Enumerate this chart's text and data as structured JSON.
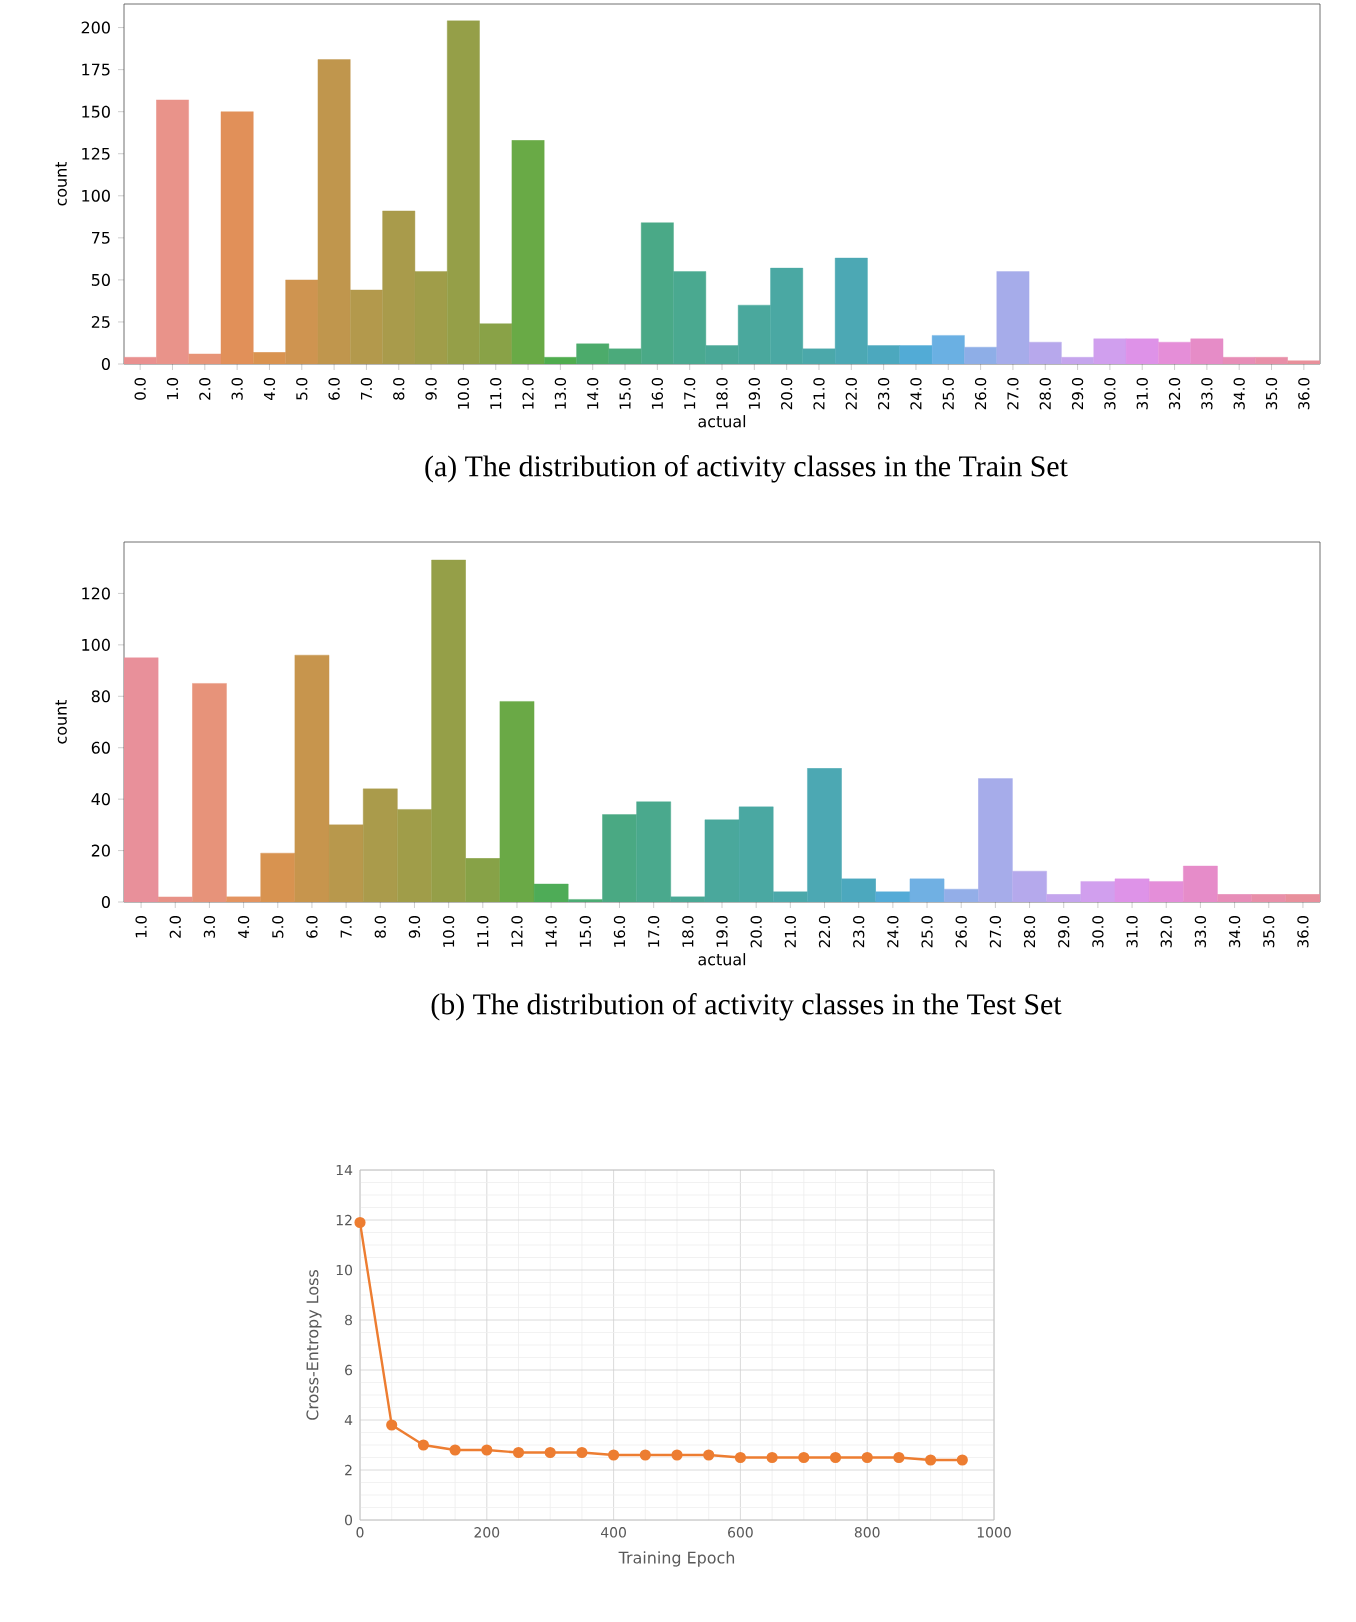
{
  "chart_data": [
    {
      "type": "bar",
      "title": "(a) The distribution of activity classes in the Train Set",
      "xlabel": "actual",
      "ylabel": "count",
      "categories": [
        "0.0",
        "1.0",
        "2.0",
        "3.0",
        "4.0",
        "5.0",
        "6.0",
        "7.0",
        "8.0",
        "9.0",
        "10.0",
        "11.0",
        "12.0",
        "13.0",
        "14.0",
        "15.0",
        "16.0",
        "17.0",
        "18.0",
        "19.0",
        "20.0",
        "21.0",
        "22.0",
        "23.0",
        "24.0",
        "25.0",
        "26.0",
        "27.0",
        "28.0",
        "29.0",
        "30.0",
        "31.0",
        "32.0",
        "33.0",
        "34.0",
        "35.0",
        "36.0"
      ],
      "values": [
        4,
        157,
        6,
        150,
        7,
        50,
        181,
        44,
        91,
        55,
        204,
        24,
        133,
        4,
        12,
        9,
        84,
        55,
        11,
        35,
        57,
        9,
        63,
        11,
        11,
        17,
        10,
        55,
        13,
        4,
        15,
        15,
        13,
        15,
        4,
        4,
        2
      ],
      "colors": [
        "#e9908f",
        "#e9938a",
        "#e79478",
        "#e19059",
        "#d99350",
        "#cf9450",
        "#c0964d",
        "#b3994c",
        "#a99b4b",
        "#a09d49",
        "#959f48",
        "#89a247",
        "#69aa46",
        "#4fac4e",
        "#4cab6b",
        "#4baa7b",
        "#4aa987",
        "#4aa990",
        "#4aa897",
        "#4aa89d",
        "#4aa8a3",
        "#4ba8aa",
        "#4ca8b4",
        "#4ca8be",
        "#52abd6",
        "#6ab0e3",
        "#8eaee7",
        "#a6acea",
        "#b7a8ec",
        "#c5a5ed",
        "#d09fee",
        "#de92e8",
        "#e58ed8",
        "#e68cc7",
        "#e78db7",
        "#e88fa8",
        "#e8909b"
      ],
      "ylim": [
        0,
        214
      ],
      "yticks": [
        0,
        25,
        50,
        75,
        100,
        125,
        150,
        175,
        200
      ]
    },
    {
      "type": "bar",
      "title": "(b) The distribution of activity classes in the Test Set",
      "xlabel": "actual",
      "ylabel": "count",
      "categories": [
        "1.0",
        "2.0",
        "3.0",
        "4.0",
        "5.0",
        "6.0",
        "7.0",
        "8.0",
        "9.0",
        "10.0",
        "11.0",
        "12.0",
        "14.0",
        "15.0",
        "16.0",
        "17.0",
        "18.0",
        "19.0",
        "20.0",
        "21.0",
        "22.0",
        "23.0",
        "24.0",
        "25.0",
        "26.0",
        "27.0",
        "28.0",
        "29.0",
        "30.0",
        "31.0",
        "32.0",
        "33.0",
        "34.0",
        "35.0",
        "36.0"
      ],
      "values": [
        95,
        2,
        85,
        2,
        19,
        96,
        30,
        44,
        36,
        133,
        17,
        78,
        7,
        1,
        34,
        39,
        2,
        32,
        37,
        4,
        52,
        9,
        4,
        9,
        5,
        48,
        12,
        3,
        8,
        9,
        8,
        14,
        3,
        3,
        3
      ],
      "colors": [
        "#e8909a",
        "#e89287",
        "#e7937a",
        "#e39461",
        "#d89350",
        "#c7954d",
        "#b8984c",
        "#aa9b4b",
        "#a09d49",
        "#959f48",
        "#87a247",
        "#6aa946",
        "#4eac57",
        "#4bab73",
        "#4aa983",
        "#4aa98d",
        "#4aa895",
        "#4aa89c",
        "#4aa8a2",
        "#4ba8aa",
        "#4ca8b3",
        "#4ca8be",
        "#54abd7",
        "#70b0e3",
        "#93aee8",
        "#a6acea",
        "#b5a9ec",
        "#c4a5ed",
        "#d19fee",
        "#de93e8",
        "#e48ed9",
        "#e68cc9",
        "#e78db8",
        "#e88fa9",
        "#e8909c"
      ],
      "ylim": [
        0,
        140
      ],
      "yticks": [
        0,
        20,
        40,
        60,
        80,
        100,
        120
      ]
    },
    {
      "type": "line",
      "xlabel": "Training Epoch",
      "ylabel": "Cross-Entropy Loss",
      "x": [
        0,
        50,
        100,
        150,
        200,
        250,
        300,
        350,
        400,
        450,
        500,
        550,
        600,
        650,
        700,
        750,
        800,
        850,
        900,
        950
      ],
      "values": [
        11.9,
        3.8,
        3.0,
        2.8,
        2.8,
        2.7,
        2.7,
        2.7,
        2.6,
        2.6,
        2.6,
        2.6,
        2.5,
        2.5,
        2.5,
        2.5,
        2.5,
        2.5,
        2.4,
        2.4
      ],
      "color": "#ed7d31",
      "marker": "circle",
      "line_style": "solid",
      "grid": true,
      "xlim": [
        0,
        1000
      ],
      "xticks": [
        0,
        200,
        400,
        600,
        800,
        1000
      ],
      "ylim": [
        0,
        14
      ],
      "yticks": [
        0,
        2,
        4,
        6,
        8,
        10,
        12,
        14
      ]
    }
  ]
}
